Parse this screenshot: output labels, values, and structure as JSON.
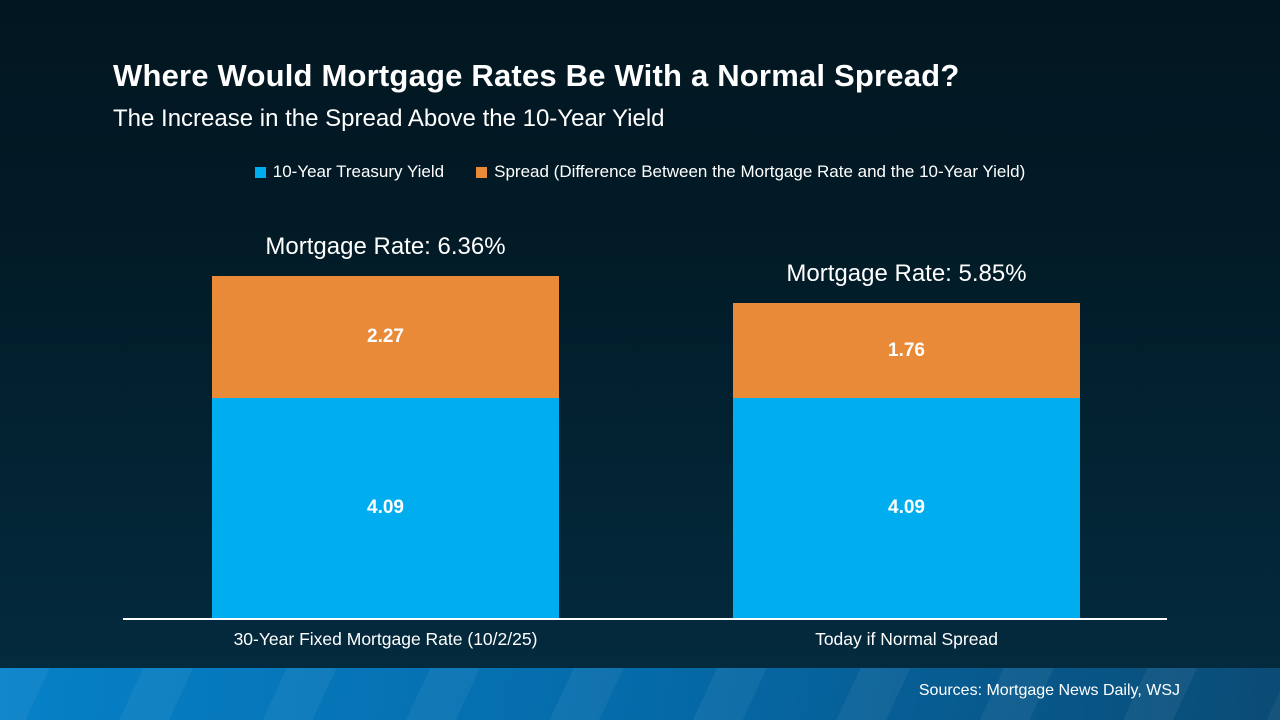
{
  "title": "Where Would Mortgage Rates Be With a Normal Spread?",
  "subtitle": "The Increase in the Spread Above the 10-Year Yield",
  "chart_data": {
    "type": "bar",
    "stacked": true,
    "categories": [
      "30-Year Fixed Mortgage Rate (10/2/25)",
      "Today if Normal Spread"
    ],
    "series": [
      {
        "name": "10-Year Treasury Yield",
        "color": "#00aeef",
        "values": [
          4.09,
          4.09
        ]
      },
      {
        "name": "Spread (Difference Between the Mortgage Rate and the 10-Year Yield)",
        "color": "#e98a38",
        "values": [
          2.27,
          1.76
        ]
      }
    ],
    "totals": [
      6.36,
      5.85
    ],
    "annotations": [
      "Mortgage Rate: 6.36%",
      "Mortgage Rate: 5.85%"
    ],
    "ylim": [
      0,
      6.36
    ],
    "grid": false,
    "legend_position": "top",
    "value_labels_shown": true
  },
  "footer": {
    "sources": "Sources: Mortgage News Daily, WSJ"
  },
  "colors": {
    "background_top": "#021621",
    "background_bottom": "#042a3e",
    "treasury_blue": "#00aeef",
    "spread_orange": "#e98a38",
    "axis_line": "#ffffff",
    "footer_band_left": "#0681c8",
    "footer_band_right": "#0a4b75",
    "text": "#ffffff"
  }
}
